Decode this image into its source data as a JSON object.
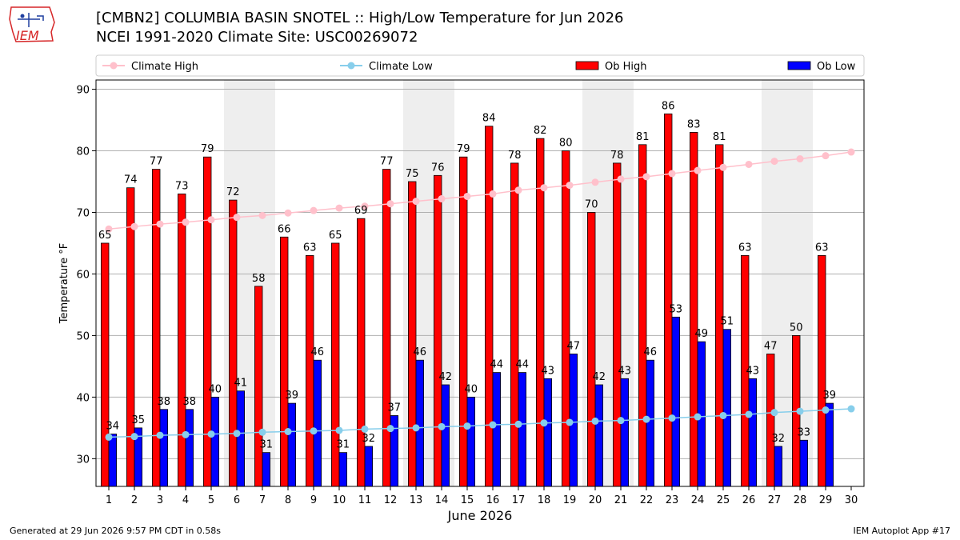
{
  "header": {
    "title_line1": "[CMBN2] COLUMBIA BASIN SNOTEL :: High/Low Temperature for Jun 2026",
    "title_line2": "NCEI 1991-2020 Climate Site: USC00269072",
    "logo_text": "IEM"
  },
  "footer": {
    "generated": "Generated at 29 Jun 2026 9:57 PM CDT in 0.58s",
    "app": "IEM Autoplot App #17"
  },
  "colors": {
    "climate_high": "#ffc0cb",
    "climate_low": "#87ceeb",
    "ob_high": "#ff0000",
    "ob_low": "#0000ff",
    "weekend_band": "#eeeeee",
    "logo": "#d62728"
  },
  "chart_data": {
    "type": "bar",
    "xlabel": "June 2026",
    "ylabel": "Temperature °F",
    "ylim": [
      25.5,
      91.5
    ],
    "yticks": [
      30,
      40,
      50,
      60,
      70,
      80,
      90
    ],
    "grid": true,
    "legend_position": "top",
    "x": [
      1,
      2,
      3,
      4,
      5,
      6,
      7,
      8,
      9,
      10,
      11,
      12,
      13,
      14,
      15,
      16,
      17,
      18,
      19,
      20,
      21,
      22,
      23,
      24,
      25,
      26,
      27,
      28,
      29,
      30
    ],
    "weekend_days": [
      6,
      7,
      13,
      14,
      20,
      21,
      27,
      28
    ],
    "legend": [
      "Climate High",
      "Climate Low",
      "Ob High",
      "Ob Low"
    ],
    "series": [
      {
        "name": "Climate High",
        "kind": "line",
        "values": [
          67.3,
          67.7,
          68.1,
          68.4,
          68.8,
          69.2,
          69.5,
          69.9,
          70.3,
          70.7,
          71.0,
          71.4,
          71.8,
          72.2,
          72.6,
          73.0,
          73.6,
          74.0,
          74.4,
          74.9,
          75.4,
          75.8,
          76.3,
          76.8,
          77.3,
          77.8,
          78.3,
          78.7,
          79.2,
          79.8
        ]
      },
      {
        "name": "Climate Low",
        "kind": "line",
        "values": [
          33.5,
          33.6,
          33.8,
          33.9,
          34.0,
          34.1,
          34.3,
          34.4,
          34.5,
          34.6,
          34.8,
          34.9,
          35.0,
          35.2,
          35.3,
          35.5,
          35.6,
          35.8,
          35.9,
          36.1,
          36.2,
          36.4,
          36.6,
          36.8,
          37.0,
          37.2,
          37.5,
          37.7,
          37.9,
          38.1
        ]
      },
      {
        "name": "Ob High",
        "kind": "bar",
        "values": [
          65,
          74,
          77,
          73,
          79,
          72,
          58,
          66,
          63,
          65,
          69,
          77,
          75,
          76,
          79,
          84,
          78,
          82,
          80,
          70,
          78,
          81,
          86,
          83,
          81,
          63,
          47,
          50,
          63,
          null
        ],
        "labels": [
          "65",
          "74",
          "77",
          "73",
          "79",
          "72",
          "58",
          "66",
          "63",
          "65",
          "69",
          "77",
          "75",
          "76",
          "79",
          "84",
          "78",
          "82",
          "80",
          "70",
          "78",
          "81",
          "86",
          "83",
          "81",
          "63",
          "47",
          "50",
          "63",
          ""
        ]
      },
      {
        "name": "Ob Low",
        "kind": "bar",
        "values": [
          34,
          35,
          38,
          38,
          40,
          41,
          31,
          39,
          46,
          31,
          32,
          37,
          46,
          42,
          40,
          44,
          44,
          43,
          47,
          42,
          43,
          46,
          53,
          49,
          51,
          43,
          32,
          33,
          39,
          null
        ],
        "labels": [
          "34",
          "35",
          "38",
          "38",
          "40",
          "41",
          "31",
          "39",
          "46",
          "31",
          "32",
          "37",
          "46",
          "42",
          "40",
          "44",
          "44",
          "43",
          "47",
          "42",
          "43",
          "46",
          "53",
          "49",
          "51",
          "43",
          "32",
          "33",
          "39",
          ""
        ]
      }
    ]
  }
}
